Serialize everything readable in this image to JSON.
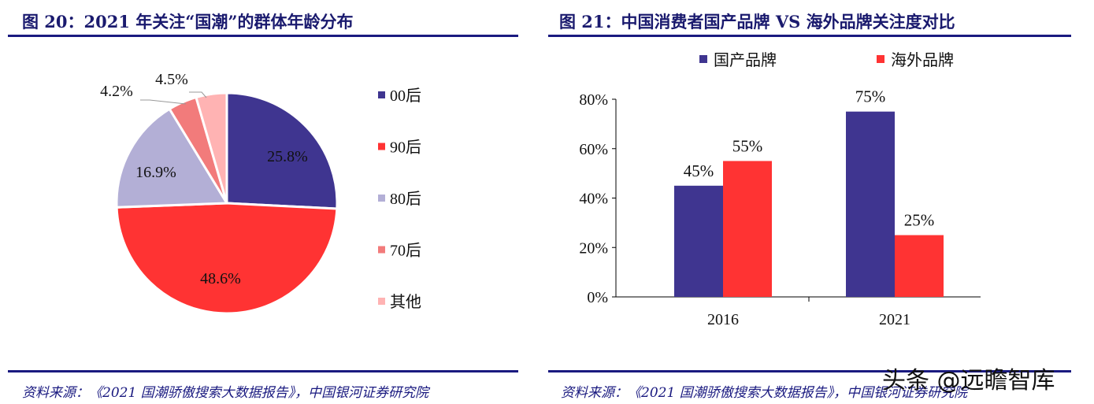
{
  "left": {
    "title": "图 20：2021 年关注“国潮”的群体年龄分布",
    "source": "资料来源：《2021 国潮骄傲搜索大数据报告》，中国银河证券研究院"
  },
  "right": {
    "title": "图 21：中国消费者国产品牌 VS 海外品牌关注度对比",
    "source": "资料来源：《2021 国潮骄傲搜索大数据报告》，中国银河证券研究院"
  },
  "watermark": "头条 @远瞻智库",
  "chart_data": [
    {
      "type": "pie",
      "categories": [
        "00后",
        "90后",
        "80后",
        "70后",
        "其他"
      ],
      "values": [
        25.8,
        48.6,
        16.9,
        4.2,
        4.5
      ],
      "labels": [
        "25.8%",
        "48.6%",
        "16.9%",
        "4.2%",
        "4.5%"
      ],
      "colors": [
        "#3f3590",
        "#ff3333",
        "#b3afd6",
        "#f27b7b",
        "#ffb3b3"
      ],
      "legend": "right"
    },
    {
      "type": "bar",
      "categories": [
        "2016",
        "2021"
      ],
      "series": [
        {
          "name": "国产品牌",
          "values": [
            45,
            75
          ],
          "color": "#3f3590"
        },
        {
          "name": "海外品牌",
          "values": [
            55,
            25
          ],
          "color": "#ff3333"
        }
      ],
      "yticks": [
        "0%",
        "20%",
        "40%",
        "60%",
        "80%"
      ],
      "ylim": [
        0,
        80
      ],
      "legend": "top",
      "grid": false
    }
  ]
}
